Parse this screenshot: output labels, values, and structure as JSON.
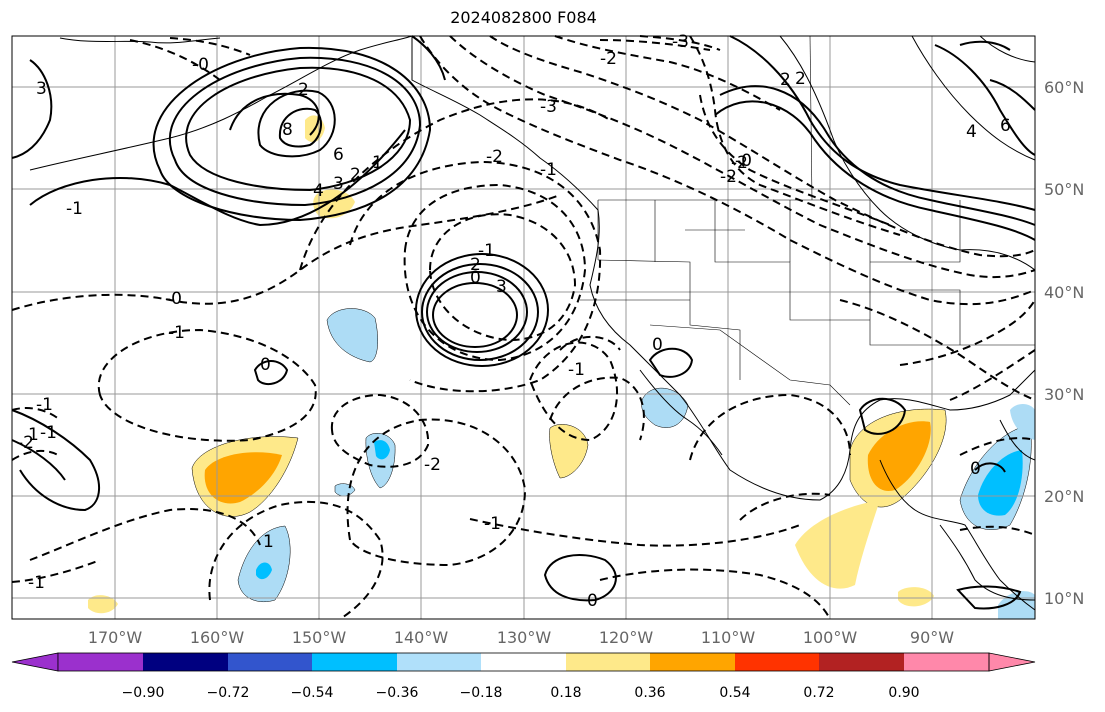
{
  "title": "2024082800 F084",
  "map": {
    "lon_labels": [
      "170°W",
      "160°W",
      "150°W",
      "140°W",
      "130°W",
      "120°W",
      "110°W",
      "100°W",
      "90°W"
    ],
    "lat_labels": [
      "60°N",
      "50°N",
      "40°N",
      "30°N",
      "20°N",
      "10°N"
    ],
    "contour_labels": [
      "-0",
      "3",
      "-3",
      "-2",
      "-2",
      "-3",
      "2",
      "8",
      "6",
      "4",
      "3",
      "2",
      "1",
      "-1",
      "-1",
      "-2",
      "-0",
      "-1",
      "1",
      "0",
      "2",
      "3",
      "-1",
      "-1",
      "-2",
      "-1",
      "0",
      "1",
      "0",
      "-2",
      "-1",
      "-2",
      "-0",
      "-1",
      "-1",
      "0",
      "0",
      "2",
      "2",
      "4",
      "6"
    ],
    "fill_colors": {
      "light_yellow": "#fee98a",
      "orange": "#ffa500",
      "light_blue": "#addcf5",
      "cyan": "#00bfff"
    }
  },
  "colorbar": {
    "ticks": [
      "−0.90",
      "−0.72",
      "−0.54",
      "−0.36",
      "−0.18",
      "0.18",
      "0.36",
      "0.54",
      "0.72",
      "0.90"
    ],
    "colors": [
      "#9b30cd",
      "#000080",
      "#3255cd",
      "#00bfff",
      "#b0e0fa",
      "#ffffff",
      "#fee98a",
      "#ffa500",
      "#ff3300",
      "#b22222",
      "#ff88aa"
    ]
  }
}
